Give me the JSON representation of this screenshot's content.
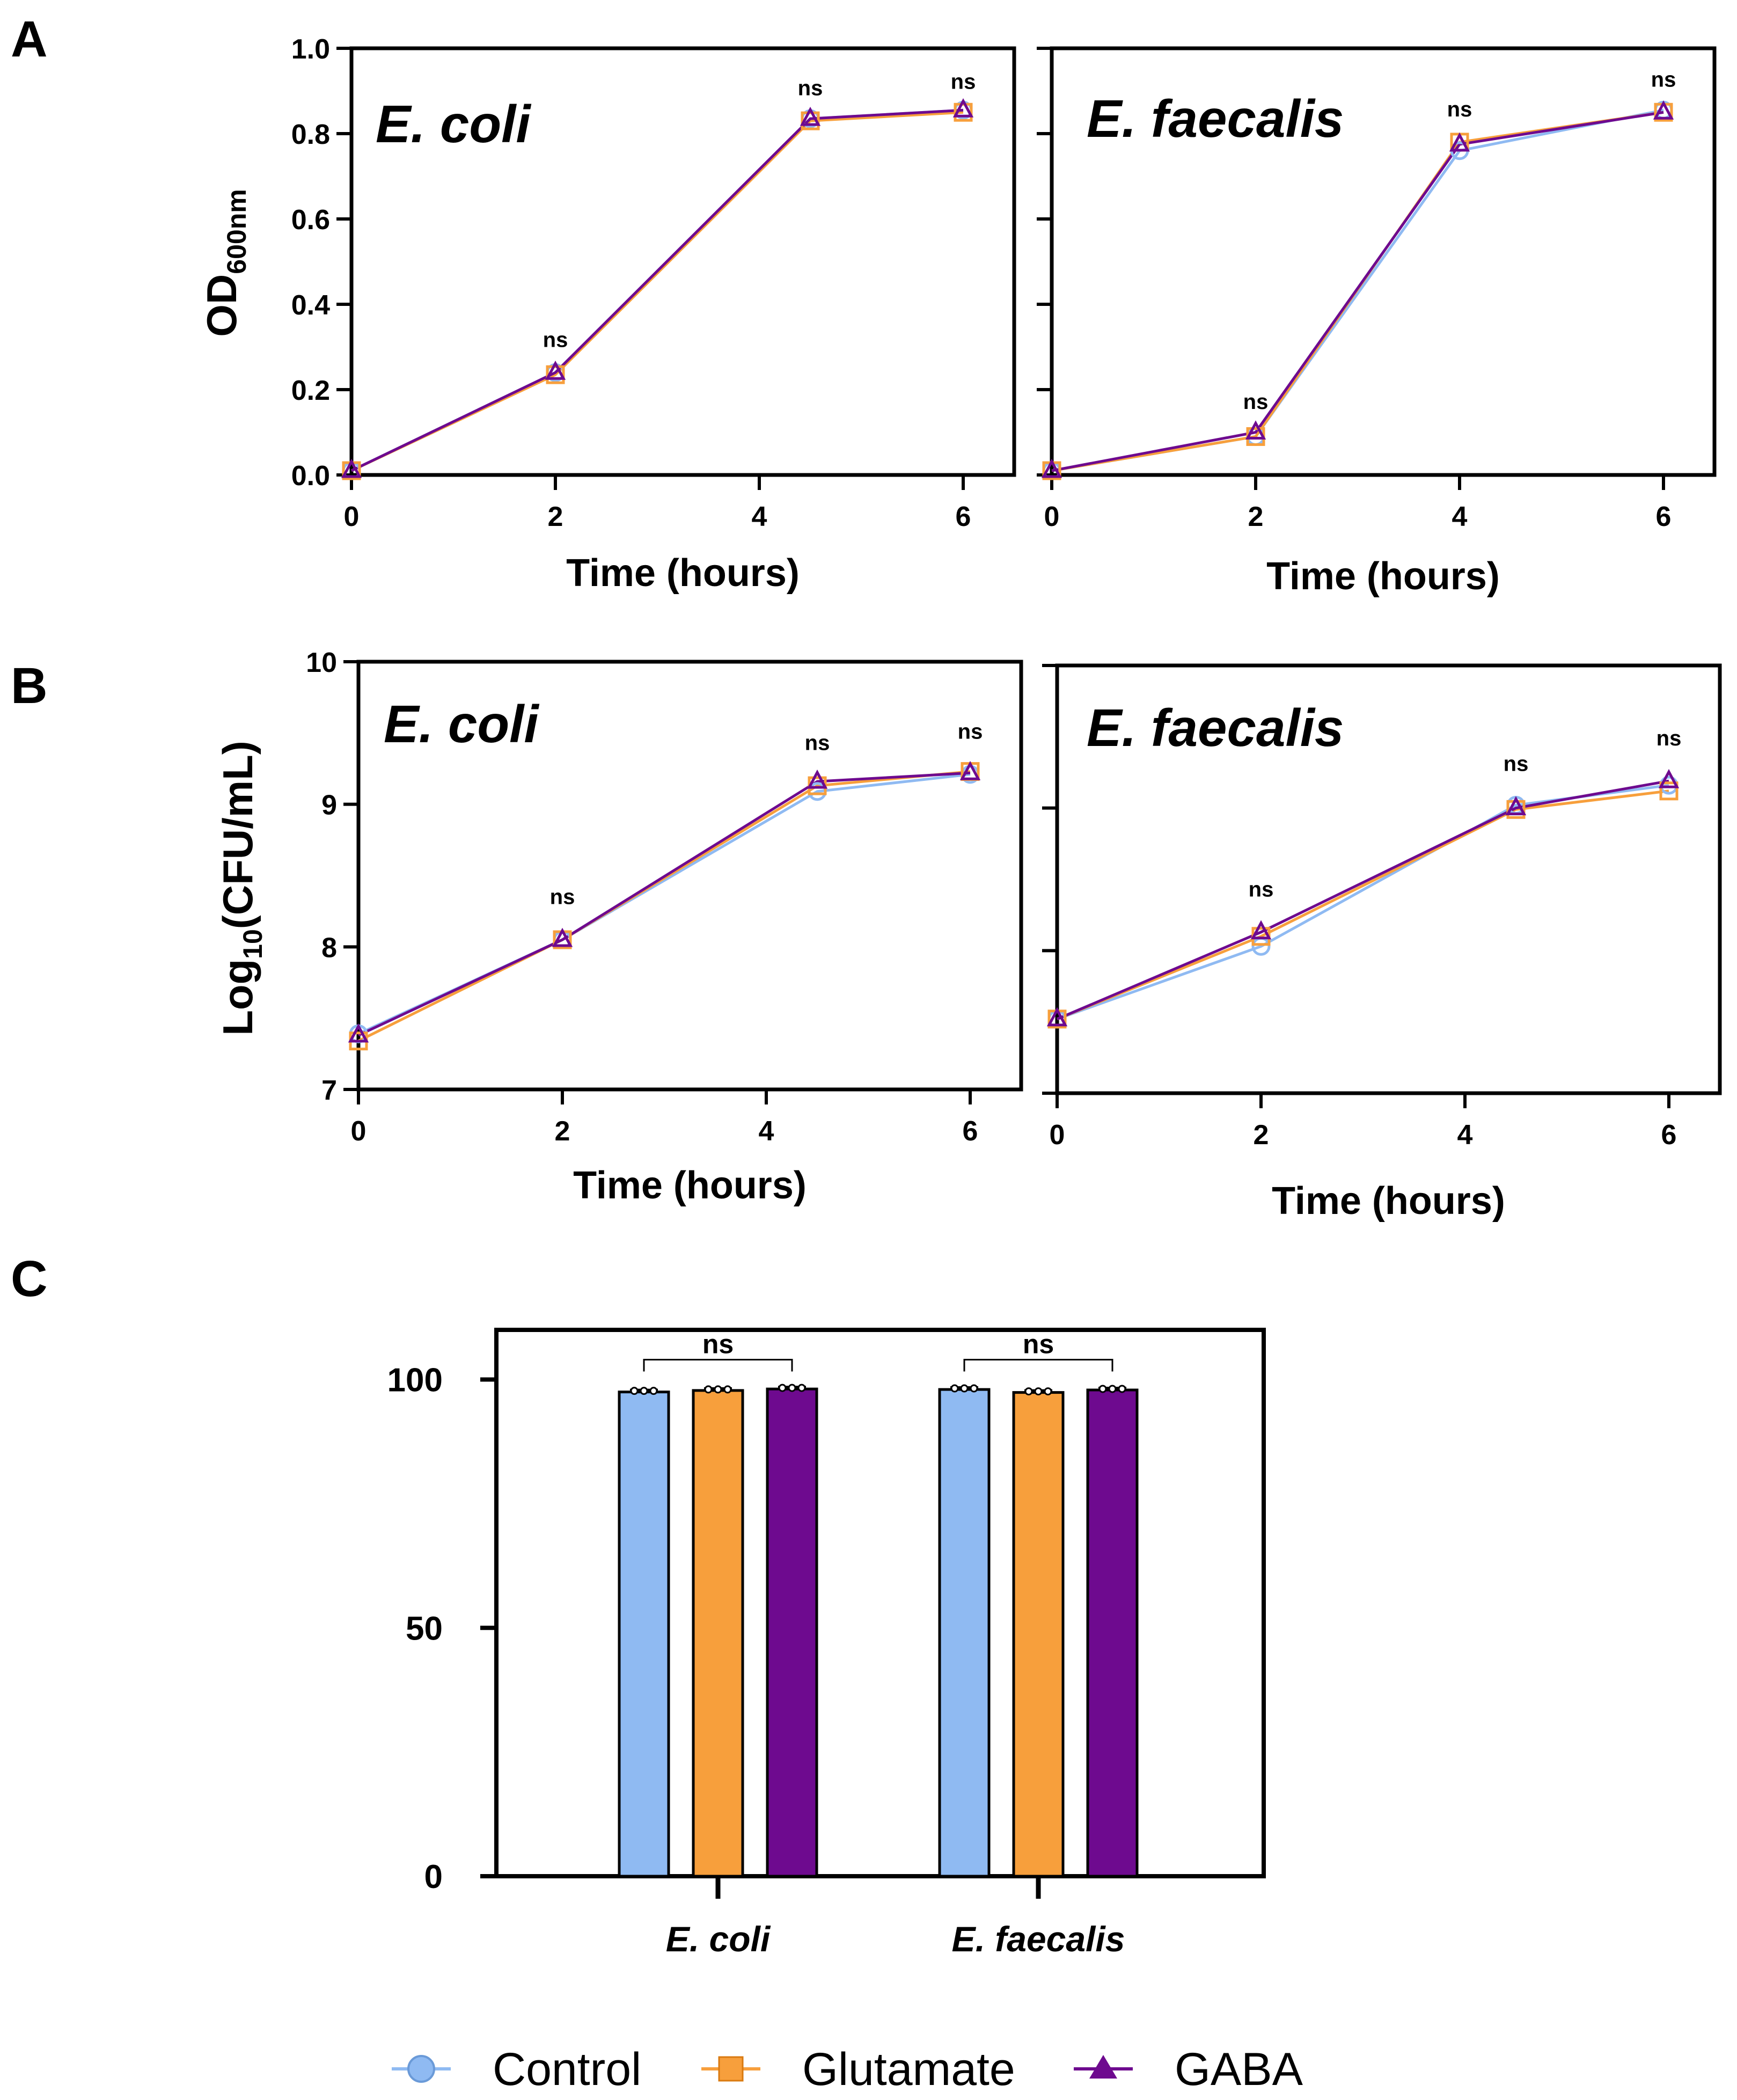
{
  "colors": {
    "control": "#8fbaf2",
    "glutamate": "#f79f3c",
    "gaba": "#6e0a8f",
    "frame": "#000000"
  },
  "panels": {
    "a": "A",
    "b": "B",
    "c": "C"
  },
  "legend": [
    {
      "label": "Control",
      "series": "control",
      "marker": "circle"
    },
    {
      "label": "Glutamate",
      "series": "glutamate",
      "marker": "square"
    },
    {
      "label": "GABA",
      "series": "gaba",
      "marker": "triangle"
    }
  ],
  "chart_data": [
    {
      "id": "A-ecoli",
      "panel": "A",
      "type": "line",
      "title": "E. coli",
      "xlabel": "Time (hours)",
      "ylabel_main": "OD",
      "ylabel_sub": "600nm",
      "xlim": [
        0,
        6.5
      ],
      "xticks": [
        0,
        2,
        4,
        6
      ],
      "ylim": [
        0,
        1.0
      ],
      "yticks": [
        0.0,
        0.2,
        0.4,
        0.6,
        0.8,
        1.0
      ],
      "ytick_labels": [
        "0.0",
        "0.2",
        "0.4",
        "0.6",
        "0.8",
        "1.0"
      ],
      "x": [
        0,
        2,
        4.5,
        6
      ],
      "series": [
        {
          "name": "Control",
          "key": "control",
          "values": [
            0.01,
            0.24,
            0.835,
            0.855
          ]
        },
        {
          "name": "Glutamate",
          "key": "glutamate",
          "values": [
            0.01,
            0.235,
            0.83,
            0.85
          ]
        },
        {
          "name": "GABA",
          "key": "gaba",
          "values": [
            0.01,
            0.24,
            0.835,
            0.855
          ]
        }
      ],
      "annotations": [
        {
          "x": 2,
          "y": 0.3,
          "text": "ns"
        },
        {
          "x": 4.5,
          "y": 0.89,
          "text": "ns"
        },
        {
          "x": 6,
          "y": 0.905,
          "text": "ns"
        }
      ]
    },
    {
      "id": "A-efaecalis",
      "panel": "A",
      "type": "line",
      "title": "E. faecalis",
      "xlabel": "Time (hours)",
      "xlim": [
        0,
        6.5
      ],
      "xticks": [
        0,
        2,
        4,
        6
      ],
      "ylim": [
        0,
        1.0
      ],
      "yticks": [
        0.0,
        0.2,
        0.4,
        0.6,
        0.8,
        1.0
      ],
      "x": [
        0,
        2,
        4,
        6
      ],
      "series": [
        {
          "name": "Control",
          "key": "control",
          "values": [
            0.01,
            0.09,
            0.76,
            0.855
          ]
        },
        {
          "name": "Glutamate",
          "key": "glutamate",
          "values": [
            0.01,
            0.09,
            0.78,
            0.85
          ]
        },
        {
          "name": "GABA",
          "key": "gaba",
          "values": [
            0.01,
            0.1,
            0.775,
            0.85
          ]
        }
      ],
      "annotations": [
        {
          "x": 2,
          "y": 0.155,
          "text": "ns"
        },
        {
          "x": 4,
          "y": 0.84,
          "text": "ns"
        },
        {
          "x": 6,
          "y": 0.91,
          "text": "ns"
        }
      ]
    },
    {
      "id": "B-ecoli",
      "panel": "B",
      "type": "line",
      "title": "E. coli",
      "xlabel": "Time (hours)",
      "ylabel_main": "Log",
      "ylabel_sub": "10",
      "ylabel_tail": "(CFU/mL)",
      "xlim": [
        0,
        6.5
      ],
      "xticks": [
        0,
        2,
        4,
        6
      ],
      "ylim": [
        7,
        10
      ],
      "yticks": [
        7,
        8,
        9,
        10
      ],
      "ytick_labels": [
        "7",
        "8",
        "9",
        "10"
      ],
      "x": [
        0,
        2,
        4.5,
        6
      ],
      "series": [
        {
          "name": "Control",
          "key": "control",
          "values": [
            7.39,
            8.05,
            9.09,
            9.21
          ]
        },
        {
          "name": "Glutamate",
          "key": "glutamate",
          "values": [
            7.34,
            8.05,
            9.13,
            9.23
          ]
        },
        {
          "name": "GABA",
          "key": "gaba",
          "values": [
            7.38,
            8.05,
            9.16,
            9.22
          ]
        }
      ],
      "annotations": [
        {
          "x": 2,
          "y": 8.3,
          "text": "ns"
        },
        {
          "x": 4.5,
          "y": 9.38,
          "text": "ns"
        },
        {
          "x": 6,
          "y": 9.46,
          "text": "ns"
        }
      ]
    },
    {
      "id": "B-efaecalis",
      "panel": "B",
      "type": "line",
      "title": "E. faecalis",
      "xlabel": "Time (hours)",
      "xlim": [
        0,
        6.5
      ],
      "xticks": [
        0,
        2,
        4,
        6
      ],
      "ylim": [
        7,
        10
      ],
      "yticks": [
        7,
        8,
        9,
        10
      ],
      "x": [
        0,
        2,
        4.5,
        6
      ],
      "series": [
        {
          "name": "Control",
          "key": "control",
          "values": [
            7.52,
            8.03,
            9.02,
            9.16
          ]
        },
        {
          "name": "Glutamate",
          "key": "glutamate",
          "values": [
            7.52,
            8.1,
            8.99,
            9.12
          ]
        },
        {
          "name": "GABA",
          "key": "gaba",
          "values": [
            7.52,
            8.13,
            9.0,
            9.19
          ]
        }
      ],
      "annotations": [
        {
          "x": 2,
          "y": 8.38,
          "text": "ns"
        },
        {
          "x": 4.5,
          "y": 9.26,
          "text": "ns"
        },
        {
          "x": 6,
          "y": 9.44,
          "text": "ns"
        }
      ]
    },
    {
      "id": "C-bars",
      "panel": "C",
      "type": "bar",
      "ylim": [
        0,
        110
      ],
      "yticks": [
        0,
        50,
        100
      ],
      "ytick_labels": [
        "0",
        "50",
        "100"
      ],
      "categories": [
        "E. coli",
        "E. faecalis"
      ],
      "series": [
        {
          "name": "Control",
          "key": "control",
          "values": [
            97.5,
            98.0
          ]
        },
        {
          "name": "Glutamate",
          "key": "glutamate",
          "values": [
            97.8,
            97.4
          ]
        },
        {
          "name": "GABA",
          "key": "gaba",
          "values": [
            98.1,
            97.9
          ]
        }
      ],
      "annotations": [
        {
          "category": "E. coli",
          "y": 104,
          "text": "ns"
        },
        {
          "category": "E. faecalis",
          "y": 104,
          "text": "ns"
        }
      ]
    }
  ]
}
